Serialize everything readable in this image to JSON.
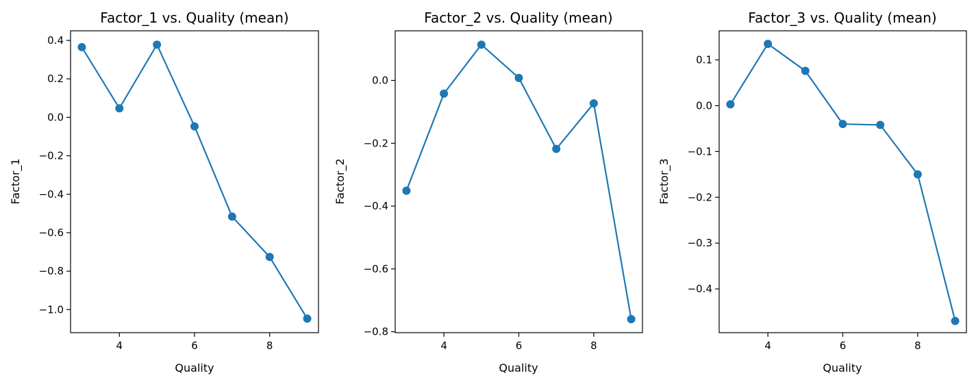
{
  "colors": {
    "series": "#1f77b4",
    "axes": "#000000",
    "background": "#ffffff"
  },
  "chart_data": [
    {
      "type": "line",
      "title": "Factor_1 vs. Quality (mean)",
      "xlabel": "Quality",
      "ylabel": "Factor_1",
      "x": [
        3,
        4,
        5,
        6,
        7,
        8,
        9
      ],
      "xticks": [
        4,
        6,
        8
      ],
      "xtick_labels": [
        "4",
        "6",
        "8"
      ],
      "yticks": [
        0.4,
        0.2,
        0.0,
        -0.2,
        -0.4,
        -0.6,
        -0.8,
        -1.0
      ],
      "ytick_labels": [
        "0.4",
        "0.2",
        "0.0",
        "−0.2",
        "−0.4",
        "−0.6",
        "−0.8",
        "−1.0"
      ],
      "xlim": [
        2.7,
        9.3
      ],
      "ylim": [
        -1.12,
        0.45
      ],
      "grid": false,
      "marker": "circle",
      "series": [
        {
          "values": [
            0.365,
            0.047,
            0.378,
            -0.047,
            -0.516,
            -0.726,
            -1.047
          ]
        }
      ]
    },
    {
      "type": "line",
      "title": "Factor_2 vs. Quality (mean)",
      "xlabel": "Quality",
      "ylabel": "Factor_2",
      "x": [
        3,
        4,
        5,
        6,
        7,
        8,
        9
      ],
      "xticks": [
        4,
        6,
        8
      ],
      "xtick_labels": [
        "4",
        "6",
        "8"
      ],
      "yticks": [
        0.0,
        -0.2,
        -0.4,
        -0.6,
        -0.8
      ],
      "ytick_labels": [
        "0.0",
        "−0.2",
        "−0.4",
        "−0.6",
        "−0.8"
      ],
      "xlim": [
        2.7,
        9.3
      ],
      "ylim": [
        -0.803,
        0.158
      ],
      "grid": false,
      "marker": "circle",
      "series": [
        {
          "values": [
            -0.351,
            -0.042,
            0.114,
            0.008,
            -0.218,
            -0.073,
            -0.76
          ]
        }
      ]
    },
    {
      "type": "line",
      "title": "Factor_3 vs. Quality (mean)",
      "xlabel": "Quality",
      "ylabel": "Factor_3",
      "x": [
        3,
        4,
        5,
        6,
        7,
        8,
        9
      ],
      "xticks": [
        4,
        6,
        8
      ],
      "xtick_labels": [
        "4",
        "6",
        "8"
      ],
      "yticks": [
        0.1,
        0.0,
        -0.1,
        -0.2,
        -0.3,
        -0.4
      ],
      "ytick_labels": [
        "0.1",
        "0.0",
        "−0.1",
        "−0.2",
        "−0.3",
        "−0.4"
      ],
      "xlim": [
        2.7,
        9.3
      ],
      "ylim": [
        -0.4955,
        0.1635
      ],
      "grid": false,
      "marker": "circle",
      "series": [
        {
          "values": [
            0.003,
            0.135,
            0.076,
            -0.04,
            -0.042,
            -0.15,
            -0.47
          ]
        }
      ]
    }
  ]
}
